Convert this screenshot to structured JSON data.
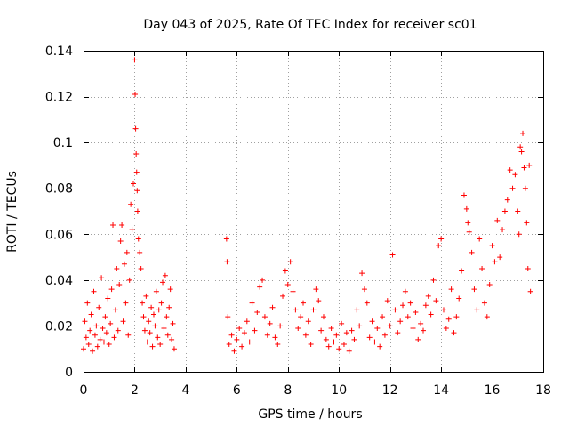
{
  "chart_data": {
    "type": "scatter",
    "title": "Day 043 of 2025, Rate Of TEC Index for receiver sc01",
    "xlabel": "GPS time / hours",
    "ylabel": "ROTI / TECUs",
    "xlim": [
      0,
      18
    ],
    "ylim": [
      0,
      0.14
    ],
    "x_ticks": [
      0,
      2,
      4,
      6,
      8,
      10,
      12,
      14,
      16,
      18
    ],
    "y_ticks": [
      0,
      0.02,
      0.04,
      0.06,
      0.08,
      0.1,
      0.12,
      0.14
    ],
    "x_tick_labels": [
      "0",
      "2",
      "4",
      "6",
      "8",
      "10",
      "12",
      "14",
      "16",
      "18"
    ],
    "y_tick_labels": [
      "0",
      "0.02",
      "0.04",
      "0.06",
      "0.08",
      "0.1",
      "0.12",
      "0.14"
    ],
    "grid": true,
    "marker": "+",
    "color": "#ff0000",
    "series": [
      {
        "name": "ROTI",
        "notes": "dense scatter; data gap between ~3.6 h and ~5.6 h; representative points",
        "points": [
          [
            0.0,
            0.01
          ],
          [
            0.05,
            0.022
          ],
          [
            0.1,
            0.015
          ],
          [
            0.15,
            0.03
          ],
          [
            0.2,
            0.012
          ],
          [
            0.25,
            0.018
          ],
          [
            0.3,
            0.025
          ],
          [
            0.35,
            0.009
          ],
          [
            0.4,
            0.035
          ],
          [
            0.45,
            0.016
          ],
          [
            0.5,
            0.02
          ],
          [
            0.55,
            0.011
          ],
          [
            0.6,
            0.028
          ],
          [
            0.65,
            0.014
          ],
          [
            0.7,
            0.041
          ],
          [
            0.75,
            0.019
          ],
          [
            0.8,
            0.013
          ],
          [
            0.85,
            0.024
          ],
          [
            0.9,
            0.017
          ],
          [
            0.95,
            0.032
          ],
          [
            1.0,
            0.012
          ],
          [
            1.05,
            0.021
          ],
          [
            1.1,
            0.036
          ],
          [
            1.15,
            0.064
          ],
          [
            1.2,
            0.015
          ],
          [
            1.25,
            0.027
          ],
          [
            1.3,
            0.045
          ],
          [
            1.35,
            0.018
          ],
          [
            1.4,
            0.038
          ],
          [
            1.45,
            0.057
          ],
          [
            1.5,
            0.064
          ],
          [
            1.55,
            0.022
          ],
          [
            1.6,
            0.047
          ],
          [
            1.65,
            0.03
          ],
          [
            1.7,
            0.052
          ],
          [
            1.75,
            0.016
          ],
          [
            1.8,
            0.04
          ],
          [
            1.85,
            0.073
          ],
          [
            1.9,
            0.062
          ],
          [
            1.95,
            0.082
          ],
          [
            2.0,
            0.136
          ],
          [
            2.02,
            0.121
          ],
          [
            2.04,
            0.106
          ],
          [
            2.06,
            0.095
          ],
          [
            2.08,
            0.087
          ],
          [
            2.1,
            0.079
          ],
          [
            2.12,
            0.07
          ],
          [
            2.15,
            0.058
          ],
          [
            2.2,
            0.052
          ],
          [
            2.25,
            0.045
          ],
          [
            2.3,
            0.03
          ],
          [
            2.35,
            0.024
          ],
          [
            2.4,
            0.018
          ],
          [
            2.45,
            0.033
          ],
          [
            2.5,
            0.013
          ],
          [
            2.55,
            0.022
          ],
          [
            2.6,
            0.017
          ],
          [
            2.65,
            0.028
          ],
          [
            2.7,
            0.011
          ],
          [
            2.75,
            0.025
          ],
          [
            2.8,
            0.02
          ],
          [
            2.85,
            0.035
          ],
          [
            2.9,
            0.015
          ],
          [
            2.95,
            0.027
          ],
          [
            3.0,
            0.012
          ],
          [
            3.05,
            0.03
          ],
          [
            3.1,
            0.039
          ],
          [
            3.15,
            0.019
          ],
          [
            3.2,
            0.042
          ],
          [
            3.25,
            0.024
          ],
          [
            3.3,
            0.016
          ],
          [
            3.35,
            0.028
          ],
          [
            3.4,
            0.036
          ],
          [
            3.45,
            0.014
          ],
          [
            3.5,
            0.021
          ],
          [
            3.55,
            0.01
          ],
          [
            5.6,
            0.058
          ],
          [
            5.62,
            0.048
          ],
          [
            5.65,
            0.024
          ],
          [
            5.7,
            0.012
          ],
          [
            5.8,
            0.016
          ],
          [
            5.9,
            0.009
          ],
          [
            6.0,
            0.014
          ],
          [
            6.1,
            0.019
          ],
          [
            6.2,
            0.011
          ],
          [
            6.3,
            0.017
          ],
          [
            6.4,
            0.022
          ],
          [
            6.5,
            0.013
          ],
          [
            6.6,
            0.03
          ],
          [
            6.7,
            0.018
          ],
          [
            6.8,
            0.026
          ],
          [
            6.9,
            0.037
          ],
          [
            7.0,
            0.04
          ],
          [
            7.1,
            0.024
          ],
          [
            7.2,
            0.016
          ],
          [
            7.3,
            0.021
          ],
          [
            7.4,
            0.028
          ],
          [
            7.5,
            0.015
          ],
          [
            7.6,
            0.012
          ],
          [
            7.7,
            0.02
          ],
          [
            7.8,
            0.033
          ],
          [
            7.9,
            0.044
          ],
          [
            8.0,
            0.038
          ],
          [
            8.1,
            0.048
          ],
          [
            8.2,
            0.035
          ],
          [
            8.3,
            0.027
          ],
          [
            8.4,
            0.019
          ],
          [
            8.5,
            0.024
          ],
          [
            8.6,
            0.03
          ],
          [
            8.7,
            0.016
          ],
          [
            8.8,
            0.022
          ],
          [
            8.9,
            0.012
          ],
          [
            9.0,
            0.027
          ],
          [
            9.1,
            0.036
          ],
          [
            9.2,
            0.031
          ],
          [
            9.3,
            0.018
          ],
          [
            9.4,
            0.024
          ],
          [
            9.5,
            0.014
          ],
          [
            9.6,
            0.011
          ],
          [
            9.7,
            0.019
          ],
          [
            9.8,
            0.013
          ],
          [
            9.9,
            0.016
          ],
          [
            10.0,
            0.01
          ],
          [
            10.1,
            0.021
          ],
          [
            10.2,
            0.012
          ],
          [
            10.3,
            0.017
          ],
          [
            10.4,
            0.009
          ],
          [
            10.5,
            0.018
          ],
          [
            10.6,
            0.014
          ],
          [
            10.7,
            0.027
          ],
          [
            10.8,
            0.02
          ],
          [
            10.9,
            0.043
          ],
          [
            11.0,
            0.036
          ],
          [
            11.1,
            0.03
          ],
          [
            11.2,
            0.015
          ],
          [
            11.3,
            0.022
          ],
          [
            11.4,
            0.013
          ],
          [
            11.5,
            0.019
          ],
          [
            11.6,
            0.011
          ],
          [
            11.7,
            0.024
          ],
          [
            11.8,
            0.016
          ],
          [
            11.9,
            0.031
          ],
          [
            12.0,
            0.02
          ],
          [
            12.1,
            0.051
          ],
          [
            12.2,
            0.027
          ],
          [
            12.3,
            0.017
          ],
          [
            12.4,
            0.022
          ],
          [
            12.5,
            0.029
          ],
          [
            12.6,
            0.035
          ],
          [
            12.7,
            0.024
          ],
          [
            12.8,
            0.03
          ],
          [
            12.9,
            0.019
          ],
          [
            13.0,
            0.026
          ],
          [
            13.1,
            0.014
          ],
          [
            13.2,
            0.021
          ],
          [
            13.3,
            0.018
          ],
          [
            13.4,
            0.029
          ],
          [
            13.5,
            0.033
          ],
          [
            13.6,
            0.025
          ],
          [
            13.7,
            0.04
          ],
          [
            13.8,
            0.031
          ],
          [
            13.9,
            0.055
          ],
          [
            14.0,
            0.058
          ],
          [
            14.1,
            0.027
          ],
          [
            14.2,
            0.019
          ],
          [
            14.3,
            0.023
          ],
          [
            14.4,
            0.036
          ],
          [
            14.5,
            0.017
          ],
          [
            14.6,
            0.024
          ],
          [
            14.7,
            0.032
          ],
          [
            14.8,
            0.044
          ],
          [
            14.9,
            0.077
          ],
          [
            15.0,
            0.071
          ],
          [
            15.05,
            0.065
          ],
          [
            15.1,
            0.061
          ],
          [
            15.2,
            0.052
          ],
          [
            15.3,
            0.036
          ],
          [
            15.4,
            0.027
          ],
          [
            15.5,
            0.058
          ],
          [
            15.6,
            0.045
          ],
          [
            15.7,
            0.03
          ],
          [
            15.8,
            0.024
          ],
          [
            15.9,
            0.038
          ],
          [
            16.0,
            0.055
          ],
          [
            16.1,
            0.048
          ],
          [
            16.2,
            0.066
          ],
          [
            16.3,
            0.05
          ],
          [
            16.4,
            0.062
          ],
          [
            16.5,
            0.07
          ],
          [
            16.6,
            0.075
          ],
          [
            16.7,
            0.088
          ],
          [
            16.8,
            0.08
          ],
          [
            16.9,
            0.086
          ],
          [
            17.0,
            0.07
          ],
          [
            17.05,
            0.06
          ],
          [
            17.1,
            0.098
          ],
          [
            17.15,
            0.096
          ],
          [
            17.2,
            0.104
          ],
          [
            17.25,
            0.089
          ],
          [
            17.3,
            0.08
          ],
          [
            17.35,
            0.065
          ],
          [
            17.4,
            0.045
          ],
          [
            17.45,
            0.09
          ],
          [
            17.5,
            0.035
          ]
        ]
      }
    ]
  }
}
